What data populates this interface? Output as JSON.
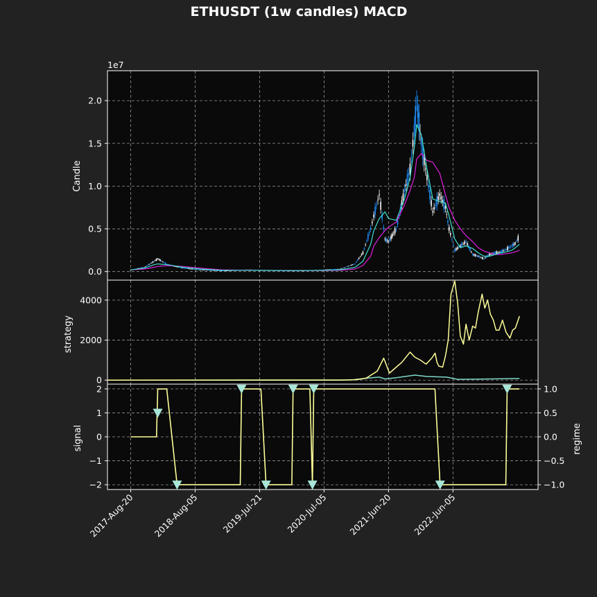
{
  "chart_data": {
    "title": "ETHUSDT (1w candles) MACD",
    "x_tick_labels": [
      "2017-Aug-20",
      "2018-Aug-05",
      "2019-Jul-21",
      "2020-Jul-05",
      "2021-Jun-20",
      "2022-Jun-05"
    ],
    "x_tick_dates": [
      "2017-08-20",
      "2018-08-05",
      "2019-07-21",
      "2020-07-05",
      "2021-06-20",
      "2022-06-05"
    ],
    "x_range": [
      "2017-04-16",
      "2023-09-10"
    ],
    "grid": true,
    "colors": {
      "background": "#222222",
      "axes_bg": "#0a0a0a",
      "candle_up": "#ffffff",
      "candle_down": "#1e90ff",
      "ma_fast": "#40e0d0",
      "ma_slow": "#e020e0",
      "strategy": "#ffff99",
      "benchmark": "#7fd8c8",
      "signal": "#ffff99",
      "marker": "#a8e6d8"
    },
    "panels": [
      {
        "type": "line",
        "ylabel": "Candle",
        "offset_text": "1e7",
        "ylim": [
          -0.1,
          2.35
        ],
        "yticks": [
          0.0,
          0.5,
          1.0,
          1.5,
          2.0
        ],
        "ytick_labels": [
          "0.0",
          "0.5",
          "1.0",
          "1.5",
          "2.0"
        ],
        "price_dates": [
          "2017-08-20",
          "2017-11-01",
          "2017-12-25",
          "2018-01-14",
          "2018-03-10",
          "2018-06-01",
          "2018-09-01",
          "2019-01-01",
          "2019-06-01",
          "2019-12-01",
          "2020-03-15",
          "2020-07-01",
          "2020-10-01",
          "2020-12-20",
          "2021-02-01",
          "2021-03-15",
          "2021-04-01",
          "2021-05-01",
          "2021-06-01",
          "2021-06-20",
          "2021-08-01",
          "2021-09-15",
          "2021-10-15",
          "2021-11-07",
          "2021-11-20",
          "2021-12-15",
          "2022-01-15",
          "2022-02-15",
          "2022-03-25",
          "2022-04-25",
          "2022-05-15",
          "2022-06-15",
          "2022-07-15",
          "2022-08-15",
          "2022-09-20",
          "2022-10-20",
          "2022-11-20",
          "2022-12-20",
          "2023-01-20",
          "2023-02-20",
          "2023-03-20",
          "2023-04-20",
          "2023-05-10",
          "2023-06-01"
        ],
        "price_values": [
          0.02,
          0.05,
          0.12,
          0.15,
          0.08,
          0.04,
          0.02,
          0.01,
          0.02,
          0.01,
          0.01,
          0.02,
          0.03,
          0.09,
          0.22,
          0.5,
          0.65,
          0.9,
          0.38,
          0.35,
          0.5,
          0.95,
          1.2,
          1.65,
          2.0,
          1.5,
          1.1,
          0.7,
          0.9,
          0.75,
          0.5,
          0.25,
          0.3,
          0.35,
          0.2,
          0.18,
          0.15,
          0.2,
          0.22,
          0.23,
          0.26,
          0.3,
          0.33,
          0.42
        ],
        "ma_fast_values": [
          0.02,
          0.04,
          0.08,
          0.09,
          0.08,
          0.05,
          0.03,
          0.015,
          0.015,
          0.012,
          0.012,
          0.015,
          0.02,
          0.05,
          0.12,
          0.32,
          0.48,
          0.62,
          0.7,
          0.62,
          0.6,
          0.85,
          1.1,
          1.45,
          1.72,
          1.6,
          1.2,
          0.85,
          0.82,
          0.8,
          0.65,
          0.38,
          0.28,
          0.3,
          0.27,
          0.22,
          0.18,
          0.18,
          0.2,
          0.22,
          0.23,
          0.25,
          0.28,
          0.32
        ],
        "ma_slow_values": [
          0.02,
          0.03,
          0.05,
          0.06,
          0.07,
          0.06,
          0.04,
          0.02,
          0.015,
          0.013,
          0.012,
          0.013,
          0.015,
          0.03,
          0.07,
          0.18,
          0.3,
          0.4,
          0.48,
          0.52,
          0.58,
          0.78,
          0.95,
          1.1,
          1.32,
          1.38,
          1.3,
          1.28,
          1.15,
          0.9,
          0.75,
          0.6,
          0.5,
          0.42,
          0.35,
          0.28,
          0.24,
          0.22,
          0.2,
          0.2,
          0.21,
          0.22,
          0.23,
          0.25
        ]
      },
      {
        "type": "line",
        "ylabel": "strategy",
        "ylim": [
          -200,
          5000
        ],
        "yticks": [
          0,
          2000,
          4000
        ],
        "ytick_labels": [
          "0",
          "2000",
          "4000"
        ],
        "strategy_dates": [
          "2017-04-16",
          "2020-10-01",
          "2020-12-20",
          "2021-01-20",
          "2021-02-20",
          "2021-03-25",
          "2021-04-20",
          "2021-05-25",
          "2021-06-25",
          "2021-08-01",
          "2021-09-01",
          "2021-10-15",
          "2021-11-10",
          "2021-12-10",
          "2022-01-10",
          "2022-02-10",
          "2022-02-28",
          "2022-03-10",
          "2022-03-20",
          "2022-04-10",
          "2022-04-25",
          "2022-05-10",
          "2022-05-25",
          "2022-06-15",
          "2022-07-01",
          "2022-07-15",
          "2022-08-01",
          "2022-08-15",
          "2022-09-01",
          "2022-09-20",
          "2022-10-05",
          "2022-10-20",
          "2022-11-10",
          "2022-11-25",
          "2022-12-10",
          "2022-12-25",
          "2023-01-10",
          "2023-01-25",
          "2023-02-10",
          "2023-03-01",
          "2023-03-20",
          "2023-04-10",
          "2023-04-25",
          "2023-05-10",
          "2023-06-01"
        ],
        "strategy_values": [
          0,
          0,
          20,
          50,
          100,
          300,
          450,
          1100,
          350,
          650,
          900,
          1400,
          1150,
          1000,
          800,
          1100,
          1350,
          900,
          700,
          650,
          1200,
          2000,
          4300,
          4950,
          3800,
          2200,
          1800,
          2800,
          2000,
          2700,
          2600,
          3400,
          4300,
          3600,
          4000,
          3300,
          3000,
          2500,
          2500,
          3000,
          2400,
          2100,
          2500,
          2600,
          3200
        ],
        "benchmark_dates": [
          "2017-04-16",
          "2020-12-01",
          "2021-03-01",
          "2021-05-01",
          "2021-06-01",
          "2021-08-01",
          "2021-11-10",
          "2022-01-15",
          "2022-05-01",
          "2022-07-01",
          "2023-01-01",
          "2023-06-01"
        ],
        "benchmark_values": [
          0,
          10,
          100,
          150,
          60,
          120,
          250,
          180,
          150,
          40,
          60,
          80
        ]
      },
      {
        "type": "line",
        "ylabel": "signal",
        "ylabel_right": "regime",
        "ylim": [
          -2.2,
          2.2
        ],
        "yticks": [
          -2,
          -1,
          0,
          1,
          2
        ],
        "ytick_labels": [
          "−2",
          "−1",
          "0",
          "1",
          "2"
        ],
        "ylim_right": [
          -1.1,
          1.1
        ],
        "yticks_right": [
          -1.0,
          -0.5,
          0.0,
          0.5,
          1.0
        ],
        "ytick_labels_right": [
          "−1.0",
          "−0.5",
          "0.0",
          "0.5",
          "1.0"
        ],
        "regime_dates": [
          "2017-08-20",
          "2018-01-07",
          "2018-01-14",
          "2018-03-04",
          "2018-04-29",
          "2019-04-07",
          "2019-04-14",
          "2019-07-28",
          "2019-08-25",
          "2020-01-12",
          "2020-01-19",
          "2020-04-19",
          "2020-05-03",
          "2020-05-10",
          "2022-02-27",
          "2022-03-27",
          "2023-03-19",
          "2023-03-26",
          "2023-06-01"
        ],
        "regime_values": [
          0,
          0,
          1,
          1,
          -1,
          -1,
          1,
          1,
          -1,
          -1,
          1,
          1,
          -1,
          1,
          1,
          -1,
          -1,
          1,
          1
        ],
        "signal_markers": [
          {
            "date": "2018-01-14",
            "value": 1
          },
          {
            "date": "2018-04-29",
            "value": -2
          },
          {
            "date": "2019-04-14",
            "value": 2
          },
          {
            "date": "2019-08-25",
            "value": -2
          },
          {
            "date": "2020-01-19",
            "value": 2
          },
          {
            "date": "2020-05-03",
            "value": -2
          },
          {
            "date": "2020-05-10",
            "value": 2
          },
          {
            "date": "2022-03-27",
            "value": -2
          },
          {
            "date": "2023-03-26",
            "value": 2
          }
        ]
      }
    ]
  }
}
